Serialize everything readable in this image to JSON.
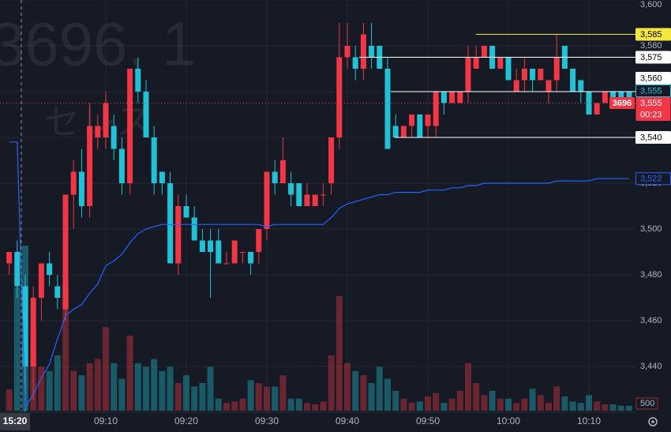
{
  "chart_data": {
    "type": "candlestick",
    "title": "3696, 1",
    "subtitle": "セレス",
    "categories": [
      null,
      null,
      null,
      null,
      null,
      null,
      null,
      null,
      null,
      null,
      null,
      null,
      "09:10",
      null,
      null,
      null,
      null,
      null,
      null,
      null,
      null,
      null,
      "09:20",
      null,
      null,
      null,
      null,
      null,
      null,
      null,
      null,
      null,
      "09:30",
      null,
      null,
      null,
      null,
      null,
      null,
      null,
      null,
      null,
      "09:40",
      null,
      null,
      null,
      null,
      null,
      null,
      null,
      null,
      null,
      "09:50",
      null,
      null,
      null,
      null,
      null,
      null,
      null,
      null,
      null,
      "10:00",
      null,
      null,
      null,
      null,
      null,
      null,
      null,
      null,
      null,
      "10:10",
      null,
      null,
      null,
      null,
      null
    ],
    "open": [
      3485,
      3490,
      3475,
      3440,
      3470,
      3485,
      3475,
      3465,
      3515,
      3525,
      3510,
      3540,
      3540,
      3545,
      3535,
      3520,
      3570,
      3560,
      3540,
      3525,
      3520,
      3485,
      3510,
      3505,
      3495,
      3495,
      3495,
      3485,
      3485,
      3490,
      3490,
      3490,
      3500,
      3525,
      3520,
      3520,
      3520,
      3510,
      3510,
      3515,
      3520,
      3540,
      3575,
      3575,
      3570,
      3580,
      3580,
      3570,
      3545,
      3540,
      3545,
      3550,
      3545,
      3545,
      3560,
      3555,
      3555,
      3560,
      3570,
      3575,
      3580,
      3570,
      3575,
      3560,
      3565,
      3570,
      3565,
      3560,
      3565,
      3580,
      3570,
      3565,
      3560,
      3550,
      3555,
      3560,
      3560,
      3560
    ],
    "high": [
      3490,
      3495,
      3480,
      3475,
      3485,
      3490,
      3480,
      3515,
      3530,
      3535,
      3555,
      3550,
      3560,
      3550,
      3540,
      3570,
      3575,
      3565,
      3545,
      3525,
      3525,
      3515,
      3515,
      3510,
      3500,
      3500,
      3500,
      3490,
      3495,
      3490,
      3490,
      3500,
      3525,
      3530,
      3540,
      3525,
      3520,
      3520,
      3515,
      3520,
      3540,
      3590,
      3590,
      3580,
      3590,
      3590,
      3580,
      3575,
      3550,
      3545,
      3550,
      3550,
      3550,
      3560,
      3560,
      3560,
      3560,
      3580,
      3580,
      3580,
      3580,
      3575,
      3575,
      3570,
      3575,
      3570,
      3570,
      3565,
      3585,
      3580,
      3570,
      3565,
      3560,
      3555,
      3560,
      3560,
      3560,
      3560
    ],
    "low": [
      3480,
      3470,
      3420,
      3425,
      3460,
      3475,
      3465,
      3460,
      3500,
      3505,
      3505,
      3535,
      3535,
      3530,
      3515,
      3515,
      3555,
      3540,
      3515,
      3515,
      3485,
      3480,
      3505,
      3495,
      3490,
      3470,
      3485,
      3485,
      3485,
      3485,
      3480,
      3485,
      3495,
      3515,
      3520,
      3510,
      3510,
      3510,
      3510,
      3510,
      3515,
      3535,
      3570,
      3565,
      3565,
      3570,
      3570,
      3535,
      3540,
      3540,
      3540,
      3540,
      3540,
      3540,
      3550,
      3555,
      3555,
      3555,
      3570,
      3575,
      3570,
      3570,
      3565,
      3560,
      3560,
      3560,
      3565,
      3555,
      3560,
      3570,
      3560,
      3555,
      3550,
      3550,
      3555,
      3555,
      3555,
      3555
    ],
    "close": [
      3490,
      3475,
      3440,
      3470,
      3485,
      3480,
      3470,
      3515,
      3525,
      3510,
      3545,
      3545,
      3555,
      3535,
      3520,
      3570,
      3560,
      3540,
      3520,
      3520,
      3485,
      3510,
      3505,
      3495,
      3490,
      3490,
      3485,
      3485,
      3495,
      3490,
      3485,
      3500,
      3525,
      3520,
      3530,
      3515,
      3510,
      3515,
      3515,
      3515,
      3540,
      3575,
      3580,
      3570,
      3585,
      3575,
      3570,
      3535,
      3540,
      3545,
      3550,
      3540,
      3550,
      3560,
      3555,
      3560,
      3560,
      3575,
      3575,
      3580,
      3570,
      3575,
      3565,
      3565,
      3570,
      3565,
      3570,
      3565,
      3575,
      3570,
      3560,
      3560,
      3550,
      3555,
      3560,
      3555,
      3555,
      3555
    ],
    "up_color": "#f23645",
    "down_color": "#22c2d6",
    "volume": {
      "values": [
        1500,
        8700,
        11650,
        5600,
        3100,
        2800,
        3900,
        8950,
        2800,
        2500,
        3350,
        3650,
        5900,
        3350,
        2250,
        5300,
        3350,
        3100,
        3650,
        2800,
        3100,
        1950,
        2500,
        1700,
        1950,
        3100,
        850,
        550,
        650,
        850,
        2150,
        1950,
        1700,
        1700,
        2500,
        850,
        850,
        550,
        450,
        650,
        3900,
        8100,
        3350,
        2800,
        2500,
        1950,
        3100,
        2250,
        1400,
        850,
        550,
        650,
        1000,
        1250,
        550,
        850,
        1400,
        3350,
        1950,
        1100,
        1400,
        850,
        850,
        550,
        850,
        1550,
        1100,
        550,
        1700,
        1000,
        650,
        550,
        1100,
        650,
        450,
        450,
        350,
        350
      ],
      "ylim": [
        0,
        11650
      ],
      "yticks": [
        500
      ]
    },
    "ma": {
      "color": "#2962ff",
      "values": [
        3538,
        3538,
        3422,
        3428,
        3435,
        3441,
        3452,
        3462,
        3465,
        3467,
        3472,
        3476,
        3484,
        3486,
        3489,
        3494,
        3498,
        3500,
        3501,
        3502,
        3502,
        3502,
        3502,
        3502,
        3502,
        3502,
        3502,
        3502,
        3502,
        3502,
        3502,
        3502,
        3501,
        3502,
        3502,
        3502,
        3502,
        3502,
        3502,
        3502,
        3505,
        3509,
        3511,
        3512,
        3513,
        3514,
        3515,
        3515,
        3516,
        3516,
        3516,
        3516,
        3517,
        3517,
        3517,
        3518,
        3518,
        3519,
        3519,
        3520,
        3520,
        3520,
        3520,
        3520,
        3520,
        3520,
        3520,
        3520,
        3521,
        3521,
        3521,
        3521,
        3521,
        3522,
        3522,
        3522,
        3522,
        3522
      ]
    },
    "ma_label": {
      "value": 3522,
      "label": "3,522"
    },
    "series_label": {
      "value": 3555,
      "label": "3,555"
    },
    "price_lines": [
      {
        "value": 3585,
        "label": "3,585",
        "color": "#f5e642"
      },
      {
        "value": 3575,
        "label": "3,575",
        "color": "#ffffff"
      },
      {
        "value": 3560,
        "label": "3,560",
        "color": "#ffffff"
      },
      {
        "value": 3540,
        "label": "3,540",
        "color": "#ffffff"
      }
    ],
    "last_price": {
      "value": 3555,
      "label": "3,555",
      "countdown": "00:23",
      "tag": "3696"
    },
    "crosshair": {
      "label": "15:20"
    },
    "ylim": [
      3420,
      3600
    ],
    "yticks": [
      {
        "value": 3440,
        "label": "3,440"
      },
      {
        "value": 3460,
        "label": "3,460"
      },
      {
        "value": 3480,
        "label": "3,480"
      },
      {
        "value": 3500,
        "label": "3,500"
      },
      {
        "value": 3520,
        "label": "3,520"
      },
      {
        "value": 3540,
        "label": "3,540"
      },
      {
        "value": 3560,
        "label": "3,560"
      },
      {
        "value": 3580,
        "label": "3,580"
      },
      {
        "value": 3600,
        "label": "3,600"
      }
    ],
    "grid": true
  }
}
